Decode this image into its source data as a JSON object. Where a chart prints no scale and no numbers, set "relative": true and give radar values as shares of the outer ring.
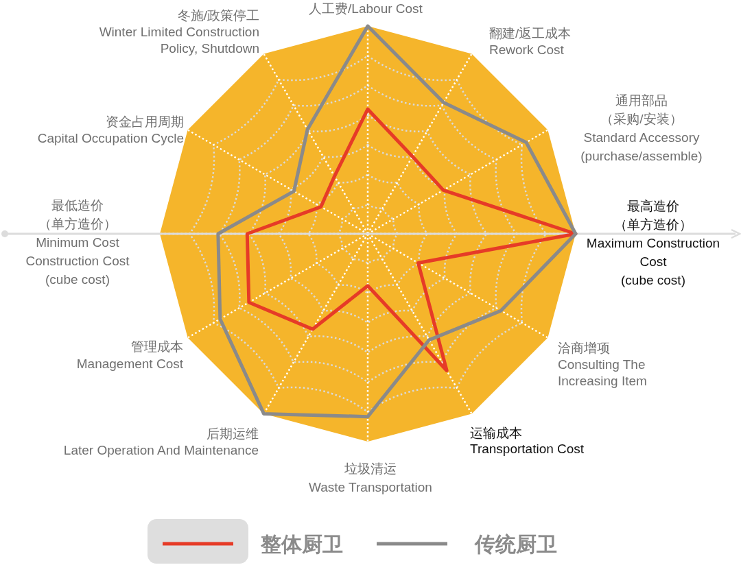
{
  "chart_data": {
    "type": "radar",
    "relative": true,
    "categories": [
      "人工费/Labour Cost",
      "翻建/返工成本\nRework Cost",
      "通用部品（采购/安装）\nStandard Accessory\n(purchase/assemble)",
      "最高造价（单方造价）\nMaximum Construction\nCost\n(cube cost)",
      "洽商增项\nConsulting The\nIncreasing Item",
      "运输成本\nTransportation Cost",
      "垃圾清运\nWaste Transportation",
      "后期运维\nLater Operation And Maintenance",
      "管理成本\nManagement Cost",
      "最低造价（单方造价）\nMinimum Cost\nConstruction Cost\n(cube cost)",
      "资金占用周期\nCapital Occupation Cycle",
      "冬施/政策停工\nWinter Limited Construction\nPolicy, Shutdown"
    ],
    "series": [
      {
        "name": "整体厨卫",
        "color": "#e63b27",
        "values": [
          0.6,
          0.43,
          0.42,
          1,
          0.28,
          0.76,
          0.25,
          0.53,
          0.66,
          0.58,
          0.26,
          0.32
        ]
      },
      {
        "name": "传统厨卫",
        "color": "#8a8a8a",
        "values": [
          1,
          0.73,
          0.88,
          1,
          0.74,
          0.59,
          0.88,
          1,
          0.82,
          0.72,
          0.41,
          0.58
        ]
      }
    ],
    "legend": "bottom",
    "grid": true
  }
}
